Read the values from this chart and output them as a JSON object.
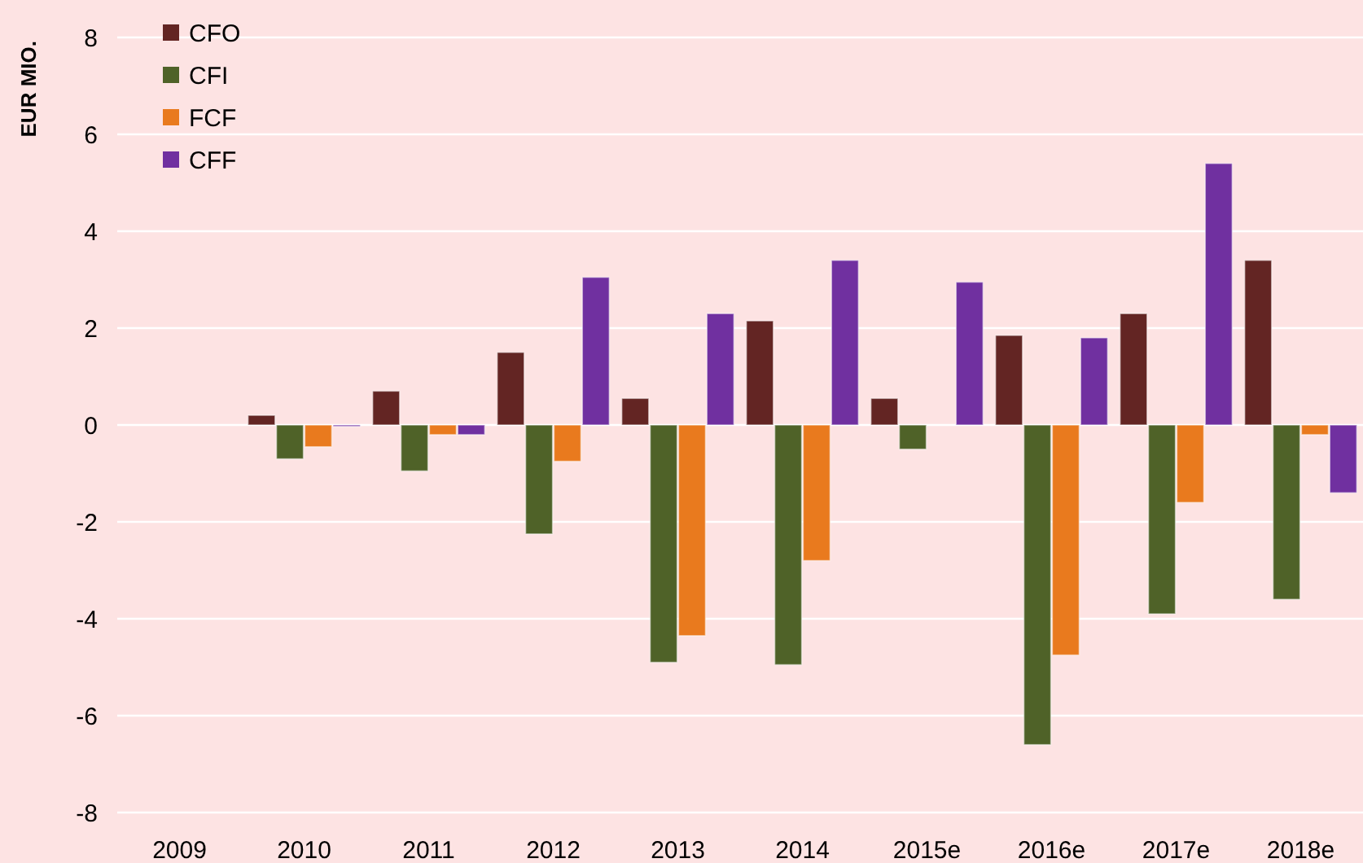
{
  "chart_data": {
    "type": "bar",
    "ylabel": "EUR MIO.",
    "categories": [
      "2009",
      "2010",
      "2011",
      "2012",
      "2013",
      "2014",
      "2015e",
      "2016e",
      "2017e",
      "2018e"
    ],
    "series": [
      {
        "name": "CFO",
        "color": "#632523",
        "values": [
          null,
          0.2,
          0.7,
          1.5,
          0.55,
          2.15,
          0.55,
          1.85,
          2.3,
          3.4
        ]
      },
      {
        "name": "CFI",
        "color": "#4f6228",
        "values": [
          null,
          -0.7,
          -0.95,
          -2.25,
          -4.9,
          -4.95,
          -0.5,
          -6.6,
          -3.9,
          -3.6
        ]
      },
      {
        "name": "FCF",
        "color": "#e97a1e",
        "values": [
          null,
          -0.45,
          -0.2,
          -0.75,
          -4.35,
          -2.8,
          0.0,
          -4.75,
          -1.6,
          -0.2
        ]
      },
      {
        "name": "CFF",
        "color": "#7030a0",
        "values": [
          null,
          -0.03,
          -0.2,
          3.05,
          2.3,
          3.4,
          2.95,
          1.8,
          5.4,
          -1.4
        ]
      }
    ],
    "ylim": [
      -8,
      8
    ],
    "yticks": [
      -8,
      -6,
      -4,
      -2,
      0,
      2,
      4,
      6,
      8
    ],
    "grid": "y",
    "legend": "top left"
  }
}
